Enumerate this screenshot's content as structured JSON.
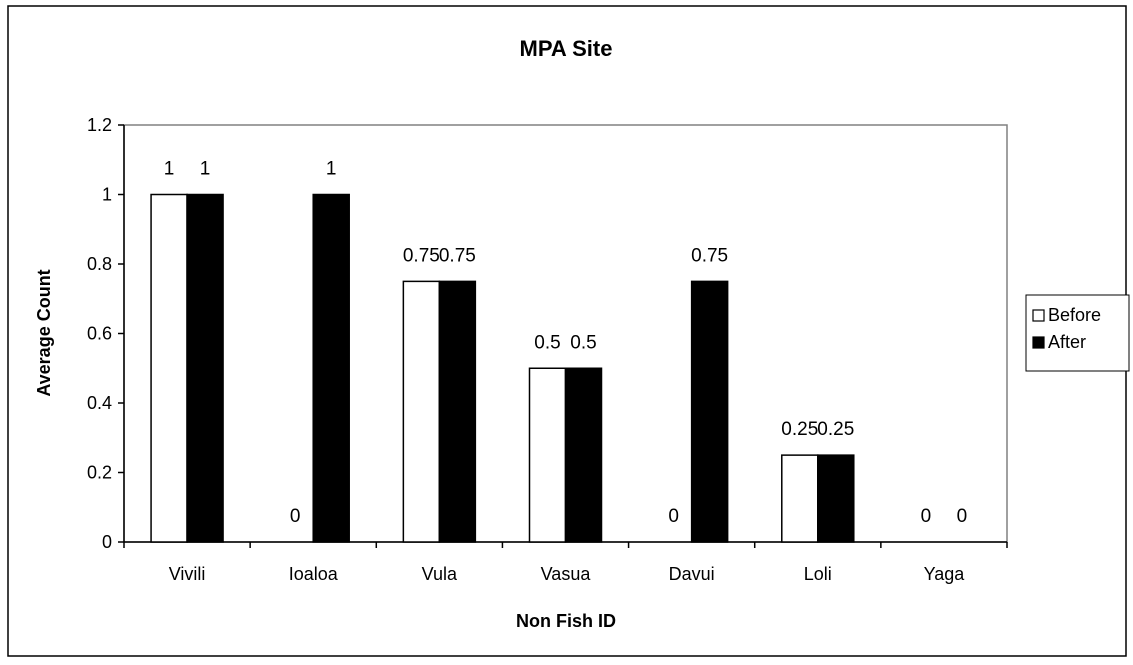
{
  "chart_data": {
    "type": "bar",
    "title": "MPA Site",
    "xlabel": "Non Fish ID",
    "ylabel": "Average Count",
    "categories": [
      "Vivili",
      "Ioaloa",
      "Vula",
      "Vasua",
      "Davui",
      "Loli",
      "Yaga"
    ],
    "series": [
      {
        "name": "Before",
        "color": "#ffffff",
        "values": [
          1,
          0,
          0.75,
          0.5,
          0,
          0.25,
          0
        ],
        "labels": [
          "1",
          "0",
          "0.75",
          "0.5",
          "0",
          "0.25",
          "0"
        ]
      },
      {
        "name": "After",
        "color": "#000000",
        "values": [
          1,
          1,
          0.75,
          0.5,
          0.75,
          0.25,
          0
        ],
        "labels": [
          "1",
          "1",
          "0.75",
          "0.5",
          "0.75",
          "0.25",
          "0"
        ]
      }
    ],
    "ylim": [
      0,
      1.2
    ],
    "yticks": [
      "0",
      "0.2",
      "0.4",
      "0.6",
      "0.8",
      "1",
      "1.2"
    ],
    "grid": false,
    "legend": "right",
    "plot_background": "#ffffff"
  }
}
